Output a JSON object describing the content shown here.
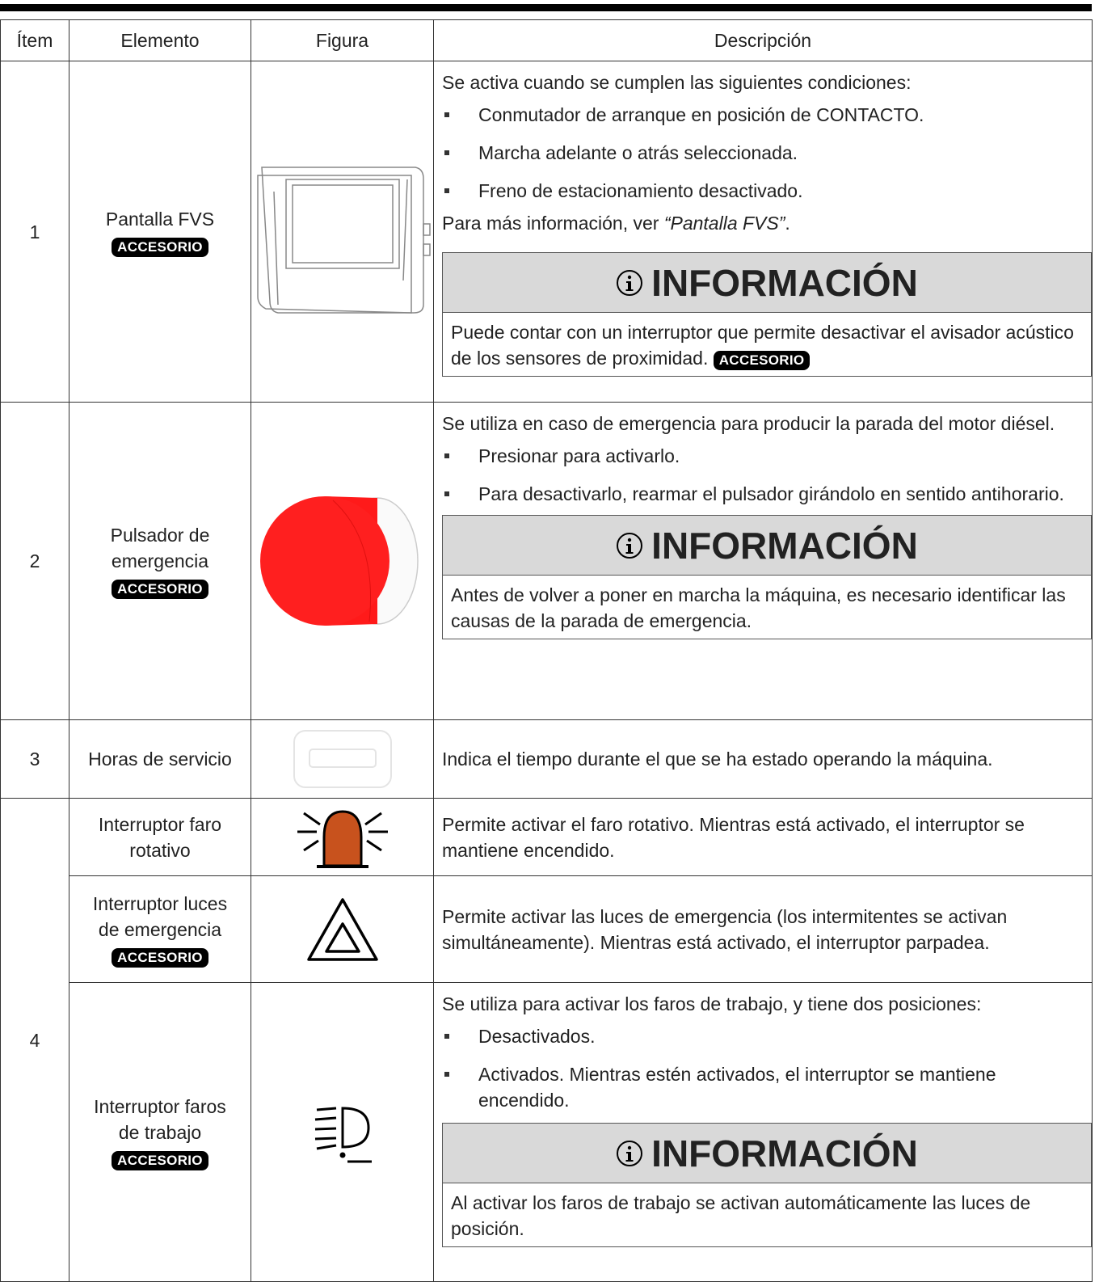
{
  "table": {
    "headers": [
      "Ítem",
      "Elemento",
      "Figura",
      "Descripción"
    ],
    "groups": [
      {
        "item": "1",
        "entries": [
          {
            "element": "Pantalla FVS",
            "badge": "ACCESORIO",
            "description": {
              "intro": "Se activa cuando se cumplen las siguientes condiciones:",
              "bullets": [
                "Conmutador de arranque en posición de CONTACTO.",
                "Marcha adelante o atrás seleccionada.",
                "Freno de estacionamiento desactivado."
              ],
              "reference": {
                "prefix": "Para más información, ver ",
                "link": "“Pantalla FVS”",
                "suffix": "."
              },
              "info": {
                "title": "INFORMACIÓN",
                "text": "Puede contar con un interruptor que permite desactivar el avisador acústico de los sensores de proximidad.",
                "badge": "ACCESORIO"
              }
            }
          }
        ]
      },
      {
        "item": "2",
        "entries": [
          {
            "element": "Pulsador de emergencia",
            "badge": "ACCESORIO",
            "description": {
              "intro": "Se utiliza en caso de emergencia para producir la parada del motor diésel.",
              "bullets": [
                "Presionar para activarlo.",
                "Para desactivarlo, rearmar el pulsador girándolo en sentido antihorario."
              ],
              "info": {
                "title": "INFORMACIÓN",
                "text": "Antes de volver a poner en marcha la máquina, es necesario identificar las causas de la parada de emergencia."
              }
            }
          }
        ]
      },
      {
        "item": "3",
        "entries": [
          {
            "element": "Horas de servicio",
            "description": {
              "intro": "Indica el tiempo durante el que se ha estado operando la máquina."
            }
          }
        ]
      },
      {
        "item": "4",
        "entries": [
          {
            "element": "Interruptor faro rotativo",
            "description": {
              "intro": "Permite activar el faro rotativo. Mientras está activado, el interruptor se mantiene encendido."
            }
          },
          {
            "element": "Interruptor luces de emergencia",
            "badge": "ACCESORIO",
            "description": {
              "intro": "Permite activar las luces de emergencia (los intermitentes se activan simultáneamente). Mientras está activado, el interruptor parpadea."
            }
          },
          {
            "element": "Interruptor faros de trabajo",
            "badge": "ACCESORIO",
            "description": {
              "intro": "Se utiliza para activar los faros de trabajo, y tiene dos posiciones:",
              "bullets": [
                "Desactivados.",
                "Activados. Mientras estén activados, el interruptor se mantiene encendido."
              ],
              "info": {
                "title": "INFORMACIÓN",
                "text": "Al activar los faros de trabajo se activan automáticamente las luces de posición."
              }
            }
          }
        ]
      }
    ]
  }
}
